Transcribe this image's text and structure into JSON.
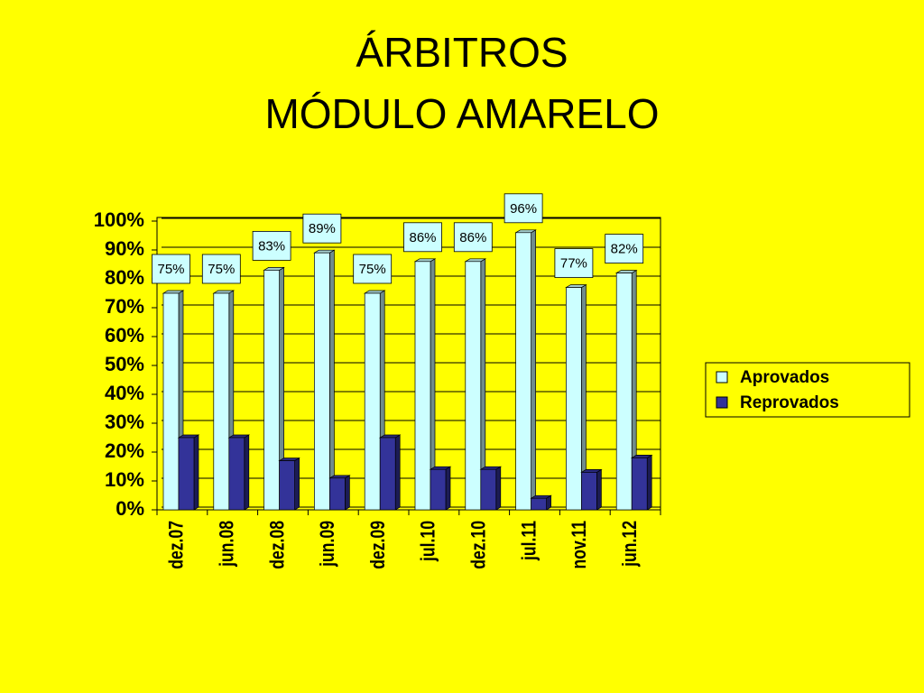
{
  "chart_data": {
    "type": "bar3d",
    "title": [
      "ÁRBITROS",
      "MÓDULO AMARELO"
    ],
    "categories": [
      "dez.07",
      "jun.08",
      "dez.08",
      "jun.09",
      "dez.09",
      "jul.10",
      "dez.10",
      "jul.11",
      "nov.11",
      "jun.12"
    ],
    "series": [
      {
        "name": "Aprovados",
        "color": "#ccffff",
        "values": [
          75,
          75,
          83,
          89,
          75,
          86,
          86,
          96,
          77,
          82
        ],
        "value_labels": [
          "75%",
          "75%",
          "83%",
          "89%",
          "75%",
          "86%",
          "86%",
          "96%",
          "77%",
          "82%"
        ]
      },
      {
        "name": "Reprovados",
        "color": "#333399",
        "values": [
          25,
          25,
          17,
          11,
          25,
          14,
          14,
          4,
          13,
          18
        ]
      }
    ],
    "ylim": [
      0,
      100
    ],
    "yticks": [
      {
        "value": 0,
        "label": "0%"
      },
      {
        "value": 10,
        "label": "10%"
      },
      {
        "value": 20,
        "label": "20%"
      },
      {
        "value": 30,
        "label": "30%"
      },
      {
        "value": 40,
        "label": "40%"
      },
      {
        "value": 50,
        "label": "50%"
      },
      {
        "value": 60,
        "label": "60%"
      },
      {
        "value": 70,
        "label": "70%"
      },
      {
        "value": 80,
        "label": "80%"
      },
      {
        "value": 90,
        "label": "90%"
      },
      {
        "value": 100,
        "label": "100%"
      }
    ],
    "grid": true,
    "legend": "right"
  }
}
